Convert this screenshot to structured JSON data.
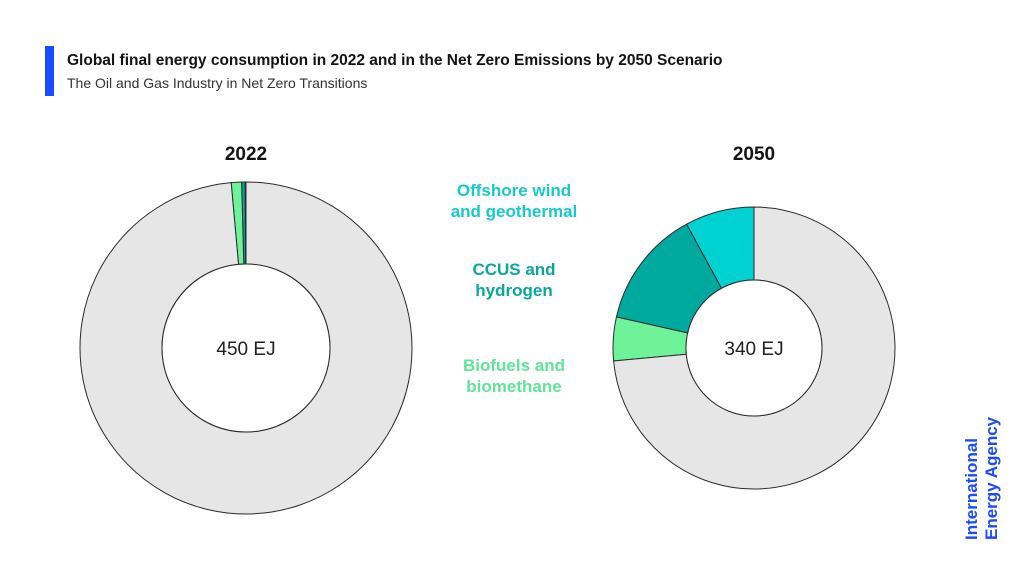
{
  "header": {
    "title": "Global final energy consumption in 2022 and in the Net Zero Emissions by 2050 Scenario",
    "subtitle": "The Oil and Gas Industry in Net Zero Transitions",
    "accent_color": "#1a4bff"
  },
  "chart_data": [
    {
      "type": "pie",
      "title": "2022",
      "center_label": "450 EJ",
      "total": 450,
      "unit": "EJ",
      "series": [
        {
          "category": "Offshore wind and geothermal",
          "value": 0.4,
          "color": "#00d1d1"
        },
        {
          "category": "CCUS and hydrogen",
          "value": 1.5,
          "color": "#00a99d"
        },
        {
          "category": "Biofuels and biomethane",
          "value": 4.5,
          "color": "#6ef29a"
        },
        {
          "category": "",
          "value": 443.6,
          "color": "#e6e6e6"
        }
      ]
    },
    {
      "type": "pie",
      "title": "2050",
      "center_label": "340 EJ",
      "total": 340,
      "unit": "EJ",
      "series": [
        {
          "category": "Offshore wind and geothermal",
          "value": 27,
          "color": "#00d1d1"
        },
        {
          "category": "CCUS and hydrogen",
          "value": 46,
          "color": "#00a99d"
        },
        {
          "category": "Biofuels and biomethane",
          "value": 17,
          "color": "#6ef29a"
        },
        {
          "category": "",
          "value": 250,
          "color": "#e6e6e6"
        }
      ]
    }
  ],
  "legend": [
    {
      "label": "Offshore wind and geothermal",
      "color": "#17c9cc"
    },
    {
      "label": "CCUS and hydrogen",
      "color": "#0aa89c"
    },
    {
      "label": "Biofuels and biomethane",
      "color": "#62e39a"
    }
  ],
  "logo": {
    "line1": "International",
    "line2": "Energy Agency",
    "color": "#1a4bff"
  }
}
